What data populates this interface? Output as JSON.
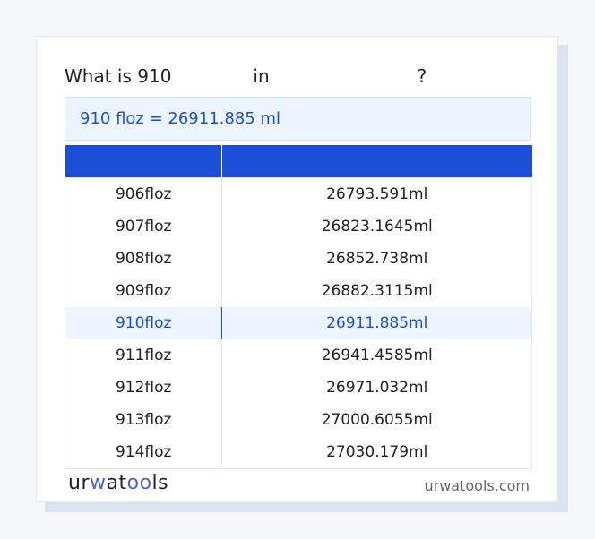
{
  "title": {
    "prefix": "What is 910",
    "mid": "in",
    "suffix": "?"
  },
  "result": "910 floz = 26911.885 ml",
  "table": {
    "headers": [
      "",
      ""
    ],
    "rows": [
      [
        "906floz",
        "26793.591ml"
      ],
      [
        "907floz",
        "26823.1645ml"
      ],
      [
        "908floz",
        "26852.738ml"
      ],
      [
        "909floz",
        "26882.3115ml"
      ],
      [
        "910floz",
        "26911.885ml"
      ],
      [
        "911floz",
        "26941.4585ml"
      ],
      [
        "912floz",
        "26971.032ml"
      ],
      [
        "913floz",
        "27000.6055ml"
      ],
      [
        "914floz",
        "27030.179ml"
      ]
    ],
    "highlighted_row": 4
  },
  "footer": {
    "logo_text": "urwatools",
    "site": "urwatools.com"
  },
  "colors": {
    "accent": "#1d4ed8",
    "highlight_bg": "#ebf4ff"
  }
}
